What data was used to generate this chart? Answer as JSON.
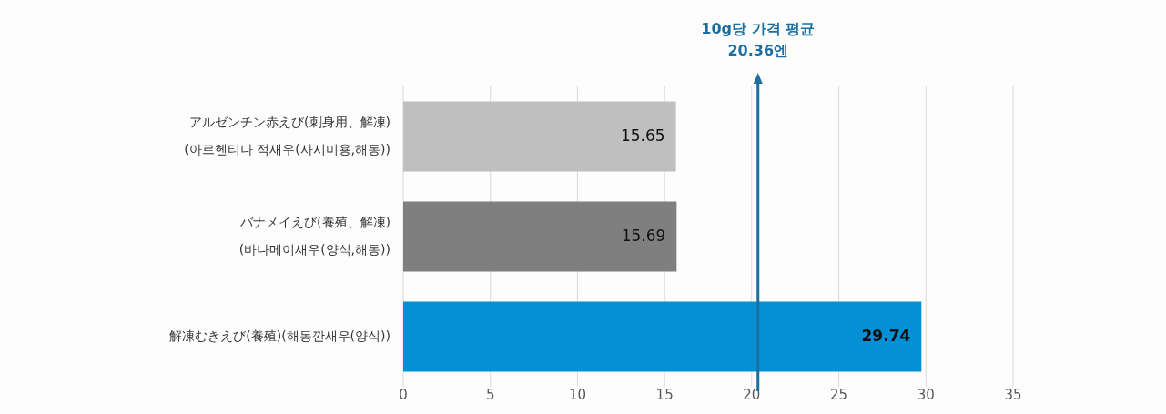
{
  "chart_data": {
    "type": "bar",
    "orientation": "horizontal",
    "categories": [
      "アルゼンチン赤えび(刺身用、解凍)\n(아르헨티나 적새우(사시미용,해동))",
      "バナメイえび(養殖、解凍)\n(바나메이새우(양식,해동))",
      "解凍むきえび(養殖)(해동깐새우(양식))"
    ],
    "values": [
      15.65,
      15.69,
      29.74
    ],
    "colors": [
      "#bfbfbf",
      "#7f7f7f",
      "#0590d6"
    ],
    "data_labels": true,
    "xlim": [
      0,
      35
    ],
    "xticks": [
      0,
      5,
      10,
      15,
      20,
      25,
      30,
      35
    ],
    "grid": "x",
    "ref_lines": [
      {
        "axis": "x",
        "value": 20.36,
        "label": "10g당 가격 평균\n20.36엔",
        "color": "#1a6fa0"
      }
    ]
  }
}
